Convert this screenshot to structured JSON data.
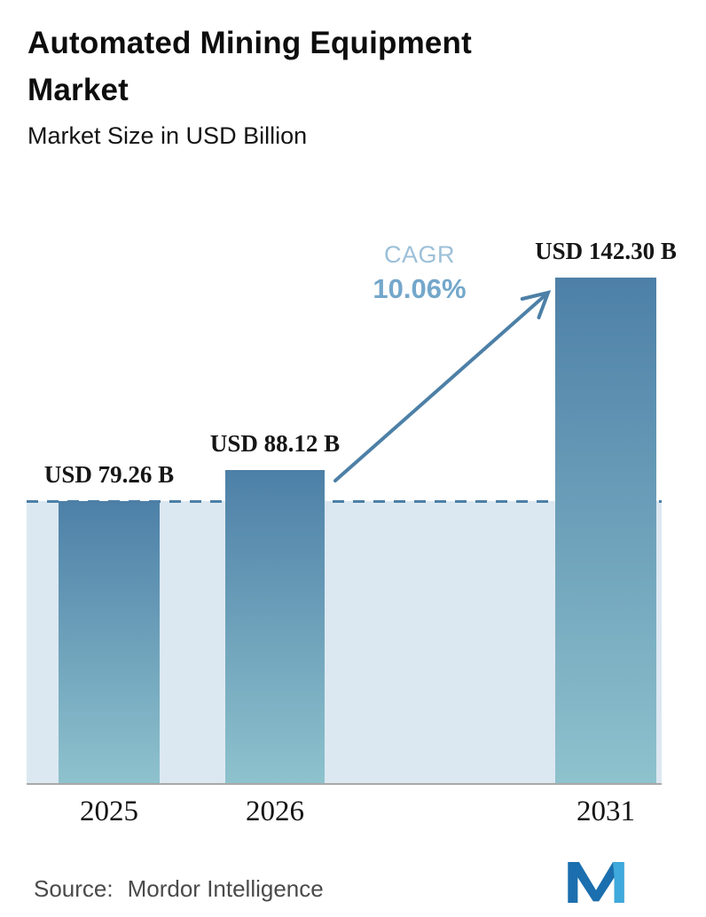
{
  "header": {
    "title": "Automated Mining Equipment Market",
    "subtitle": "Market Size in USD Billion"
  },
  "chart_data": {
    "type": "bar",
    "title": "Automated Mining Equipment Market",
    "subtitle": "Market Size in USD Billion",
    "categories": [
      "2025",
      "2026",
      "2031"
    ],
    "values": [
      79.26,
      88.12,
      142.3
    ],
    "value_labels": [
      "USD 79.26 B",
      "USD 88.12 B",
      "USD 142.30 B"
    ],
    "unit": "USD Billion",
    "ylim": [
      0,
      148
    ],
    "grid": false,
    "legend": "none",
    "annotations": {
      "cagr_label": "CAGR",
      "cagr_value": "10.06%",
      "reference_line_value": 79.26,
      "arrow": "from top of 2026 bar to top of 2031 bar"
    },
    "colors": {
      "bar_gradient_top": "#4d80a7",
      "bar_gradient_bottom": "#8ec2cd",
      "band_fill": "#dce8f1",
      "dashed_line": "#4d80a7",
      "arrow": "#4d80a7",
      "cagr_label": "#9cc0d8",
      "cagr_value": "#74a7cb",
      "axis_line": "#a9a9a9"
    }
  },
  "footer": {
    "source_label": "Source:",
    "source_value": "Mordor Intelligence",
    "logo": "mordor-intelligence-logo",
    "logo_colors": {
      "dark": "#1b6fae",
      "light": "#3fa9dc"
    }
  }
}
